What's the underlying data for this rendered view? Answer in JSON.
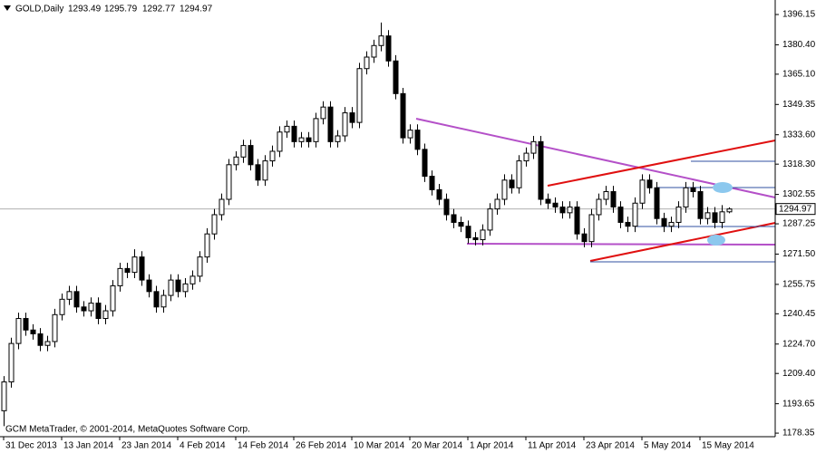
{
  "chart_data": {
    "type": "candlestick",
    "title": "GOLD,Daily",
    "footer": "GCM MetaTrader, © 2001-2014, MetaQuotes Software Corp.",
    "categories": [
      "31 Dec 2013",
      null,
      null,
      null,
      null,
      null,
      null,
      null,
      "13 Jan 2014",
      null,
      null,
      null,
      null,
      null,
      null,
      null,
      "23 Jan 2014",
      null,
      null,
      null,
      null,
      null,
      null,
      null,
      "4 Feb 2014",
      null,
      null,
      null,
      null,
      null,
      null,
      null,
      "14 Feb 2014",
      null,
      null,
      null,
      null,
      null,
      null,
      null,
      "26 Feb 2014",
      null,
      null,
      null,
      null,
      null,
      null,
      null,
      "10 Mar 2014",
      null,
      null,
      null,
      null,
      null,
      null,
      null,
      "20 Mar 2014",
      null,
      null,
      null,
      null,
      null,
      null,
      null,
      "1 Apr 2014",
      null,
      null,
      null,
      null,
      null,
      null,
      null,
      "11 Apr 2014",
      null,
      null,
      null,
      null,
      null,
      null,
      null,
      "23 Apr 2014",
      null,
      null,
      null,
      null,
      null,
      null,
      null,
      "5 May 2014",
      null,
      null,
      null,
      null,
      null,
      null,
      null,
      "15 May 2014",
      null,
      null,
      null,
      null
    ],
    "open": [
      1190,
      1205,
      1225,
      1238,
      1232,
      1230,
      1224,
      1226,
      1240,
      1248,
      1252,
      1244,
      1242,
      1246,
      1238,
      1242,
      1255,
      1264,
      1262,
      1270,
      1258,
      1252,
      1244,
      1250,
      1258,
      1252,
      1256,
      1260,
      1270,
      1282,
      1292,
      1300,
      1318,
      1322,
      1328,
      1318,
      1310,
      1320,
      1325,
      1335,
      1338,
      1330,
      1332,
      1330,
      1342,
      1348,
      1330,
      1333,
      1345,
      1340,
      1368,
      1374,
      1380,
      1385,
      1372,
      1355,
      1332,
      1336,
      1326,
      1312,
      1305,
      1300,
      1292,
      1288,
      1286,
      1280,
      1279,
      1284,
      1295,
      1300,
      1310,
      1306,
      1320,
      1324,
      1330,
      1300,
      1298,
      1296,
      1293,
      1296,
      1282,
      1278,
      1292,
      1300,
      1304,
      1296,
      1288,
      1286,
      1298,
      1310,
      1306,
      1290,
      1286,
      1288,
      1296,
      1306,
      1304,
      1290,
      1293,
      1288,
      1293.49
    ],
    "high": [
      1208,
      1228,
      1241,
      1241,
      1235,
      1233,
      1229,
      1243,
      1251,
      1255,
      1255,
      1247,
      1249,
      1249,
      1245,
      1258,
      1267,
      1267,
      1274,
      1273,
      1261,
      1255,
      1253,
      1261,
      1261,
      1259,
      1263,
      1273,
      1285,
      1295,
      1303,
      1321,
      1325,
      1331,
      1331,
      1321,
      1323,
      1328,
      1338,
      1341,
      1341,
      1335,
      1335,
      1345,
      1351,
      1351,
      1336,
      1348,
      1348,
      1371,
      1377,
      1383,
      1392,
      1388,
      1375,
      1358,
      1339,
      1339,
      1329,
      1315,
      1308,
      1303,
      1295,
      1291,
      1289,
      1283,
      1287,
      1298,
      1303,
      1313,
      1313,
      1323,
      1327,
      1333,
      1333,
      1303,
      1301,
      1299,
      1299,
      1299,
      1285,
      1295,
      1303,
      1307,
      1307,
      1299,
      1291,
      1301,
      1313,
      1313,
      1309,
      1293,
      1291,
      1299,
      1309,
      1309,
      1307,
      1296,
      1296,
      1297,
      1295.79
    ],
    "low": [
      1182,
      1202,
      1222,
      1229,
      1227,
      1221,
      1221,
      1223,
      1237,
      1245,
      1241,
      1239,
      1239,
      1235,
      1235,
      1239,
      1252,
      1259,
      1259,
      1255,
      1249,
      1241,
      1241,
      1247,
      1249,
      1249,
      1253,
      1257,
      1267,
      1279,
      1289,
      1297,
      1315,
      1319,
      1315,
      1307,
      1307,
      1317,
      1322,
      1332,
      1327,
      1327,
      1327,
      1327,
      1339,
      1327,
      1327,
      1330,
      1337,
      1337,
      1365,
      1371,
      1377,
      1369,
      1352,
      1329,
      1329,
      1323,
      1309,
      1302,
      1297,
      1289,
      1285,
      1283,
      1277,
      1276,
      1276,
      1281,
      1292,
      1297,
      1303,
      1303,
      1317,
      1321,
      1297,
      1295,
      1293,
      1290,
      1290,
      1279,
      1275,
      1275,
      1289,
      1297,
      1293,
      1285,
      1283,
      1283,
      1295,
      1303,
      1287,
      1283,
      1283,
      1285,
      1293,
      1301,
      1287,
      1287,
      1285,
      1285,
      1292.77
    ],
    "close": [
      1205,
      1225,
      1238,
      1232,
      1230,
      1224,
      1226,
      1240,
      1248,
      1252,
      1244,
      1242,
      1246,
      1238,
      1242,
      1255,
      1264,
      1262,
      1270,
      1258,
      1252,
      1244,
      1250,
      1258,
      1252,
      1256,
      1260,
      1270,
      1282,
      1292,
      1300,
      1318,
      1322,
      1328,
      1318,
      1310,
      1320,
      1325,
      1335,
      1338,
      1330,
      1332,
      1330,
      1342,
      1348,
      1330,
      1333,
      1345,
      1340,
      1368,
      1374,
      1380,
      1385,
      1372,
      1355,
      1332,
      1336,
      1326,
      1312,
      1305,
      1300,
      1292,
      1288,
      1286,
      1280,
      1279,
      1284,
      1295,
      1300,
      1310,
      1306,
      1320,
      1324,
      1330,
      1300,
      1298,
      1296,
      1293,
      1296,
      1282,
      1278,
      1292,
      1300,
      1304,
      1296,
      1288,
      1286,
      1298,
      1310,
      1306,
      1290,
      1286,
      1288,
      1296,
      1306,
      1304,
      1290,
      1293,
      1288,
      1293.49,
      1294.97
    ],
    "up_color": "#ffffff",
    "down_color": "#000000",
    "ylim": [
      1176.5,
      1403.7
    ],
    "yticks": [
      1396.15,
      {
        "value": 1380.4,
        "label": "1380.40"
      },
      {
        "value": 1365.1,
        "label": "1365.10"
      },
      1349.35,
      {
        "value": 1333.6,
        "label": "1333.60"
      },
      {
        "value": 1318.3,
        "label": "1318.30"
      },
      1302.55,
      1287.25,
      {
        "value": 1271.5,
        "label": "1271.50"
      },
      1255.75,
      1240.45,
      {
        "value": 1224.7,
        "label": "1224.70"
      },
      {
        "value": 1209.4,
        "label": "1209.40"
      },
      1193.65,
      1178.35
    ]
  }
}
